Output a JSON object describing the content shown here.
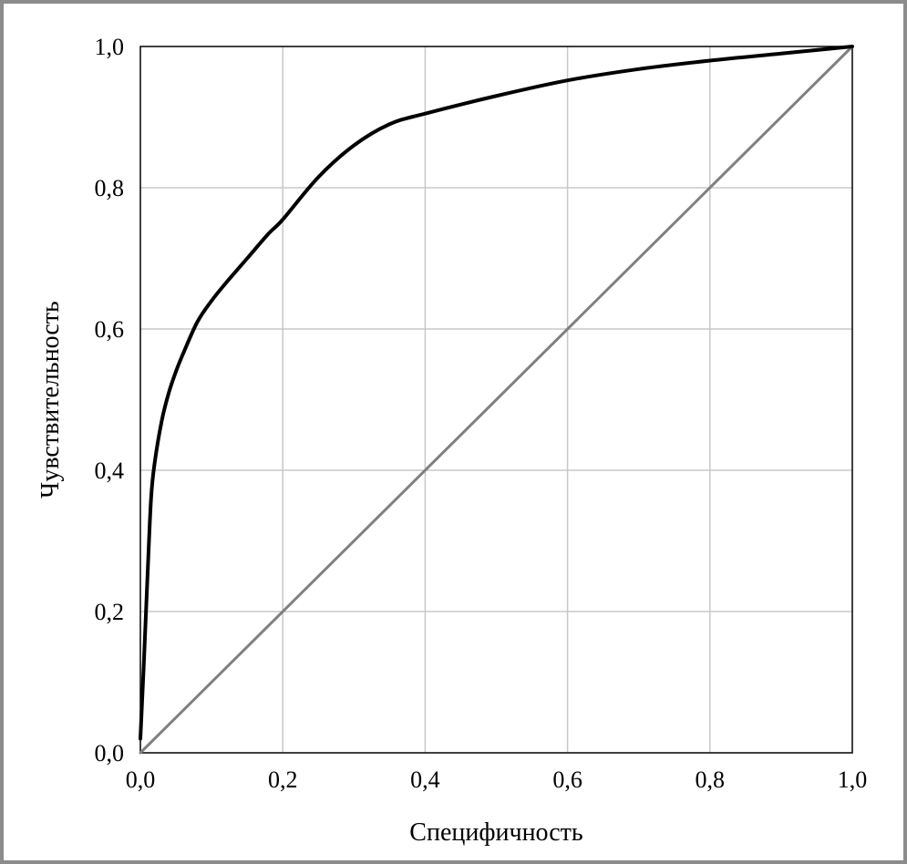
{
  "chart_data": {
    "type": "line",
    "title": "",
    "xlabel": "Специфичность",
    "ylabel": "Чувствительность",
    "xlim": [
      0,
      1
    ],
    "ylim": [
      0,
      1
    ],
    "grid": true,
    "legend": "none",
    "x_ticks": [
      "0,0",
      "0,2",
      "0,4",
      "0,6",
      "0,8",
      "1,0"
    ],
    "y_ticks": [
      "0,0",
      "0,2",
      "0,4",
      "0,6",
      "0,8",
      "1,0"
    ],
    "series": [
      {
        "color": "#000000",
        "x": [
          0.0,
          0.005,
          0.01,
          0.015,
          0.02,
          0.03,
          0.04,
          0.05,
          0.06,
          0.08,
          0.1,
          0.12,
          0.15,
          0.18,
          0.2,
          0.25,
          0.3,
          0.35,
          0.4,
          0.5,
          0.6,
          0.7,
          0.8,
          0.9,
          1.0
        ],
        "y": [
          0.02,
          0.13,
          0.25,
          0.36,
          0.41,
          0.47,
          0.51,
          0.54,
          0.565,
          0.61,
          0.64,
          0.665,
          0.7,
          0.735,
          0.755,
          0.815,
          0.86,
          0.89,
          0.905,
          0.93,
          0.952,
          0.968,
          0.98,
          0.99,
          1.0
        ]
      },
      {
        "color": "#808080",
        "x": [
          0.0,
          1.0
        ],
        "y": [
          0.0,
          1.0
        ]
      }
    ]
  }
}
